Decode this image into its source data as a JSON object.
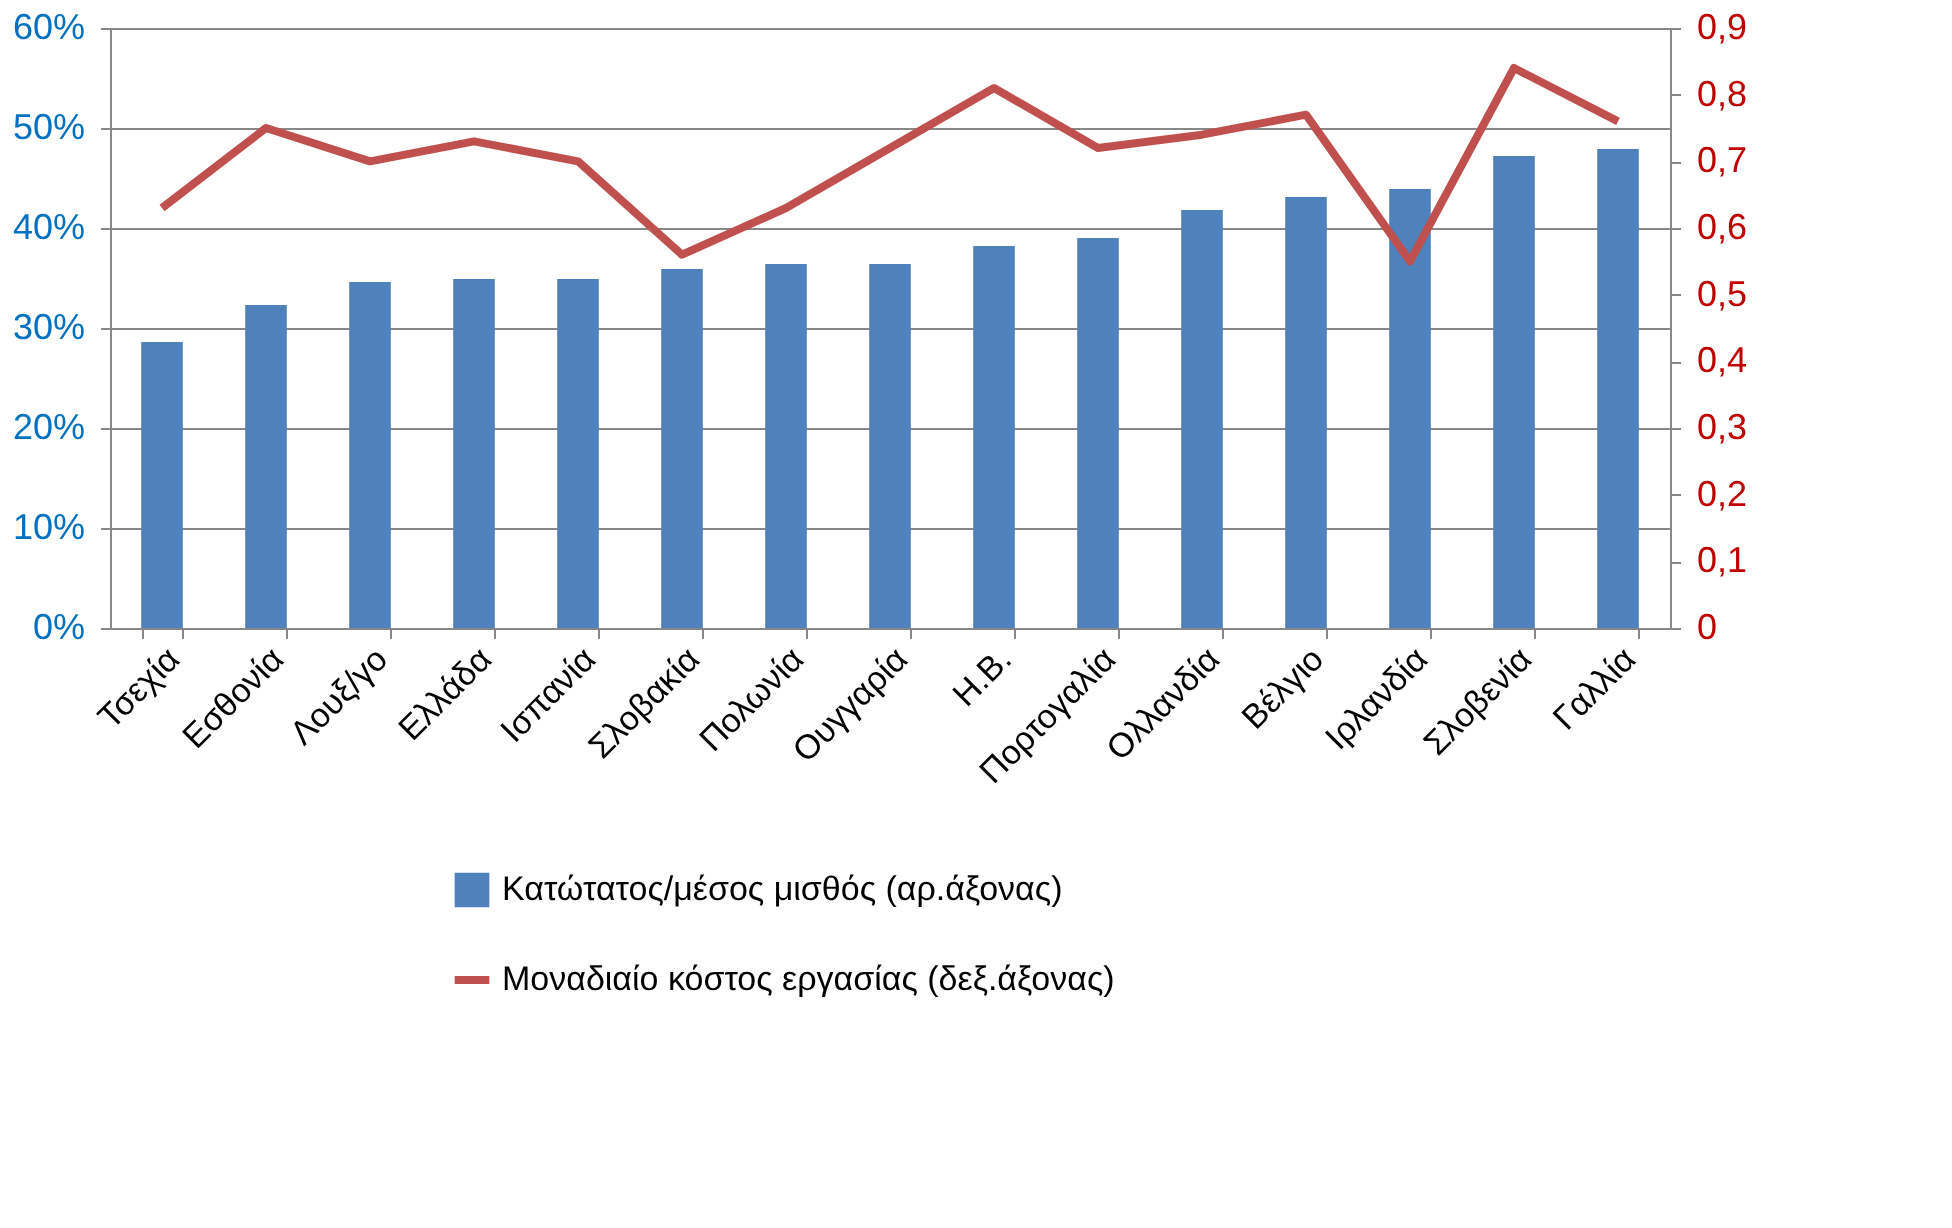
{
  "chart_data": {
    "type": "bar",
    "categories": [
      "Τσεχία",
      "Εσθονία",
      "Λουξ/γο",
      "Ελλάδα",
      "Ισπανία",
      "Σλοβακία",
      "Πολωνία",
      "Ουγγαρία",
      "Η.Β.",
      "Πορτογαλία",
      "Ολλανδία",
      "Βέλγιο",
      "Ιρλανδία",
      "Σλοβενία",
      "Γαλλία"
    ],
    "series": [
      {
        "name": "Κατώτατος/μέσος μισθός (αρ.άξονας)",
        "color": "#4f81bd",
        "values": [
          28.6,
          32.3,
          34.6,
          34.9,
          34.9,
          35.9,
          36.4,
          36.4,
          38.2,
          39.0,
          41.8,
          43.1,
          43.9,
          47.2,
          47.9
        ]
      },
      {
        "name": "Μοναδιαίο κόστος εργασίας (δεξ.άξονας)",
        "type": "line",
        "axis": "y2",
        "color": "#c0504d",
        "values": [
          0.63,
          0.75,
          0.7,
          0.73,
          0.7,
          0.56,
          0.63,
          0.72,
          0.81,
          0.72,
          0.74,
          0.77,
          0.55,
          0.84,
          0.76
        ]
      }
    ],
    "ylim": [
      0,
      60
    ],
    "yticks": [
      {
        "value": 0,
        "label": "0%"
      },
      {
        "value": 10,
        "label": "10%"
      },
      {
        "value": 20,
        "label": "20%"
      },
      {
        "value": 30,
        "label": "30%"
      },
      {
        "value": 40,
        "label": "40%"
      },
      {
        "value": 50,
        "label": "50%"
      },
      {
        "value": 60,
        "label": "60%"
      }
    ],
    "y2lim": [
      0,
      0.9
    ],
    "y2ticks": [
      0,
      {
        "value": 0.1,
        "label": "0,1"
      },
      {
        "value": 0.2,
        "label": "0,2"
      },
      {
        "value": 0.3,
        "label": "0,3"
      },
      {
        "value": 0.4,
        "label": "0,4"
      },
      {
        "value": 0.5,
        "label": "0,5"
      },
      {
        "value": 0.6,
        "label": "0,6"
      },
      {
        "value": 0.7,
        "label": "0,7"
      },
      {
        "value": 0.8,
        "label": "0,8"
      },
      {
        "value": 0.9,
        "label": "0,9"
      }
    ],
    "grid": "y",
    "legend": "bottom",
    "marker": "none",
    "line_style": "solid"
  }
}
